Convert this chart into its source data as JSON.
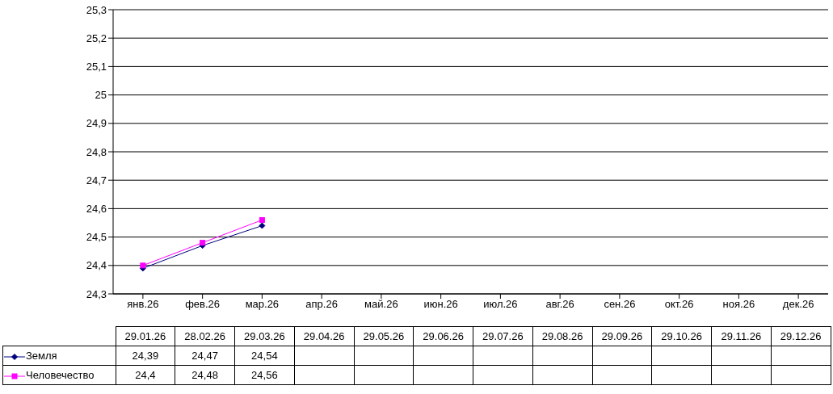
{
  "chart_data": {
    "type": "line",
    "categories": [
      "янв.26",
      "фев.26",
      "мар.26",
      "апр.26",
      "май.26",
      "июн.26",
      "июл.26",
      "авг.26",
      "сен.26",
      "окт.26",
      "ноя.26",
      "дек.26"
    ],
    "annotations": [
      "29.01.26",
      "28.02.26",
      "29.03.26",
      "29.04.26",
      "29.05.26",
      "29.06.26",
      "29.07.26",
      "29.08.26",
      "29.09.26",
      "29.10.26",
      "29.11.26",
      "29.12.26"
    ],
    "series": [
      {
        "name": "Земля",
        "color": "#000080",
        "marker": "diamond",
        "values": [
          24.39,
          24.47,
          24.54,
          null,
          null,
          null,
          null,
          null,
          null,
          null,
          null,
          null
        ],
        "value_labels": [
          "24,39",
          "24,47",
          "24,54",
          null,
          null,
          null,
          null,
          null,
          null,
          null,
          null,
          null
        ]
      },
      {
        "name": "Человечество",
        "color": "#ff00ff",
        "marker": "square",
        "values": [
          24.4,
          24.48,
          24.56,
          null,
          null,
          null,
          null,
          null,
          null,
          null,
          null,
          null
        ],
        "value_labels": [
          "24,4",
          "24,48",
          "24,56",
          null,
          null,
          null,
          null,
          null,
          null,
          null,
          null,
          null
        ]
      }
    ],
    "ylim": [
      24.3,
      25.3
    ],
    "yticks": [
      {
        "value": 24.3,
        "label": "24,3"
      },
      {
        "value": 24.4,
        "label": "24,4"
      },
      {
        "value": 24.5,
        "label": "24,5"
      },
      {
        "value": 24.6,
        "label": "24,6"
      },
      {
        "value": 24.7,
        "label": "24,7"
      },
      {
        "value": 24.8,
        "label": "24,8"
      },
      {
        "value": 24.9,
        "label": "24,9"
      },
      25,
      {
        "value": 25.1,
        "label": "25,1"
      },
      {
        "value": 25.2,
        "label": "25,2"
      },
      {
        "value": 25.3,
        "label": "25,3"
      }
    ],
    "grid": "y",
    "legend": "bottom",
    "line_style": "solid"
  }
}
